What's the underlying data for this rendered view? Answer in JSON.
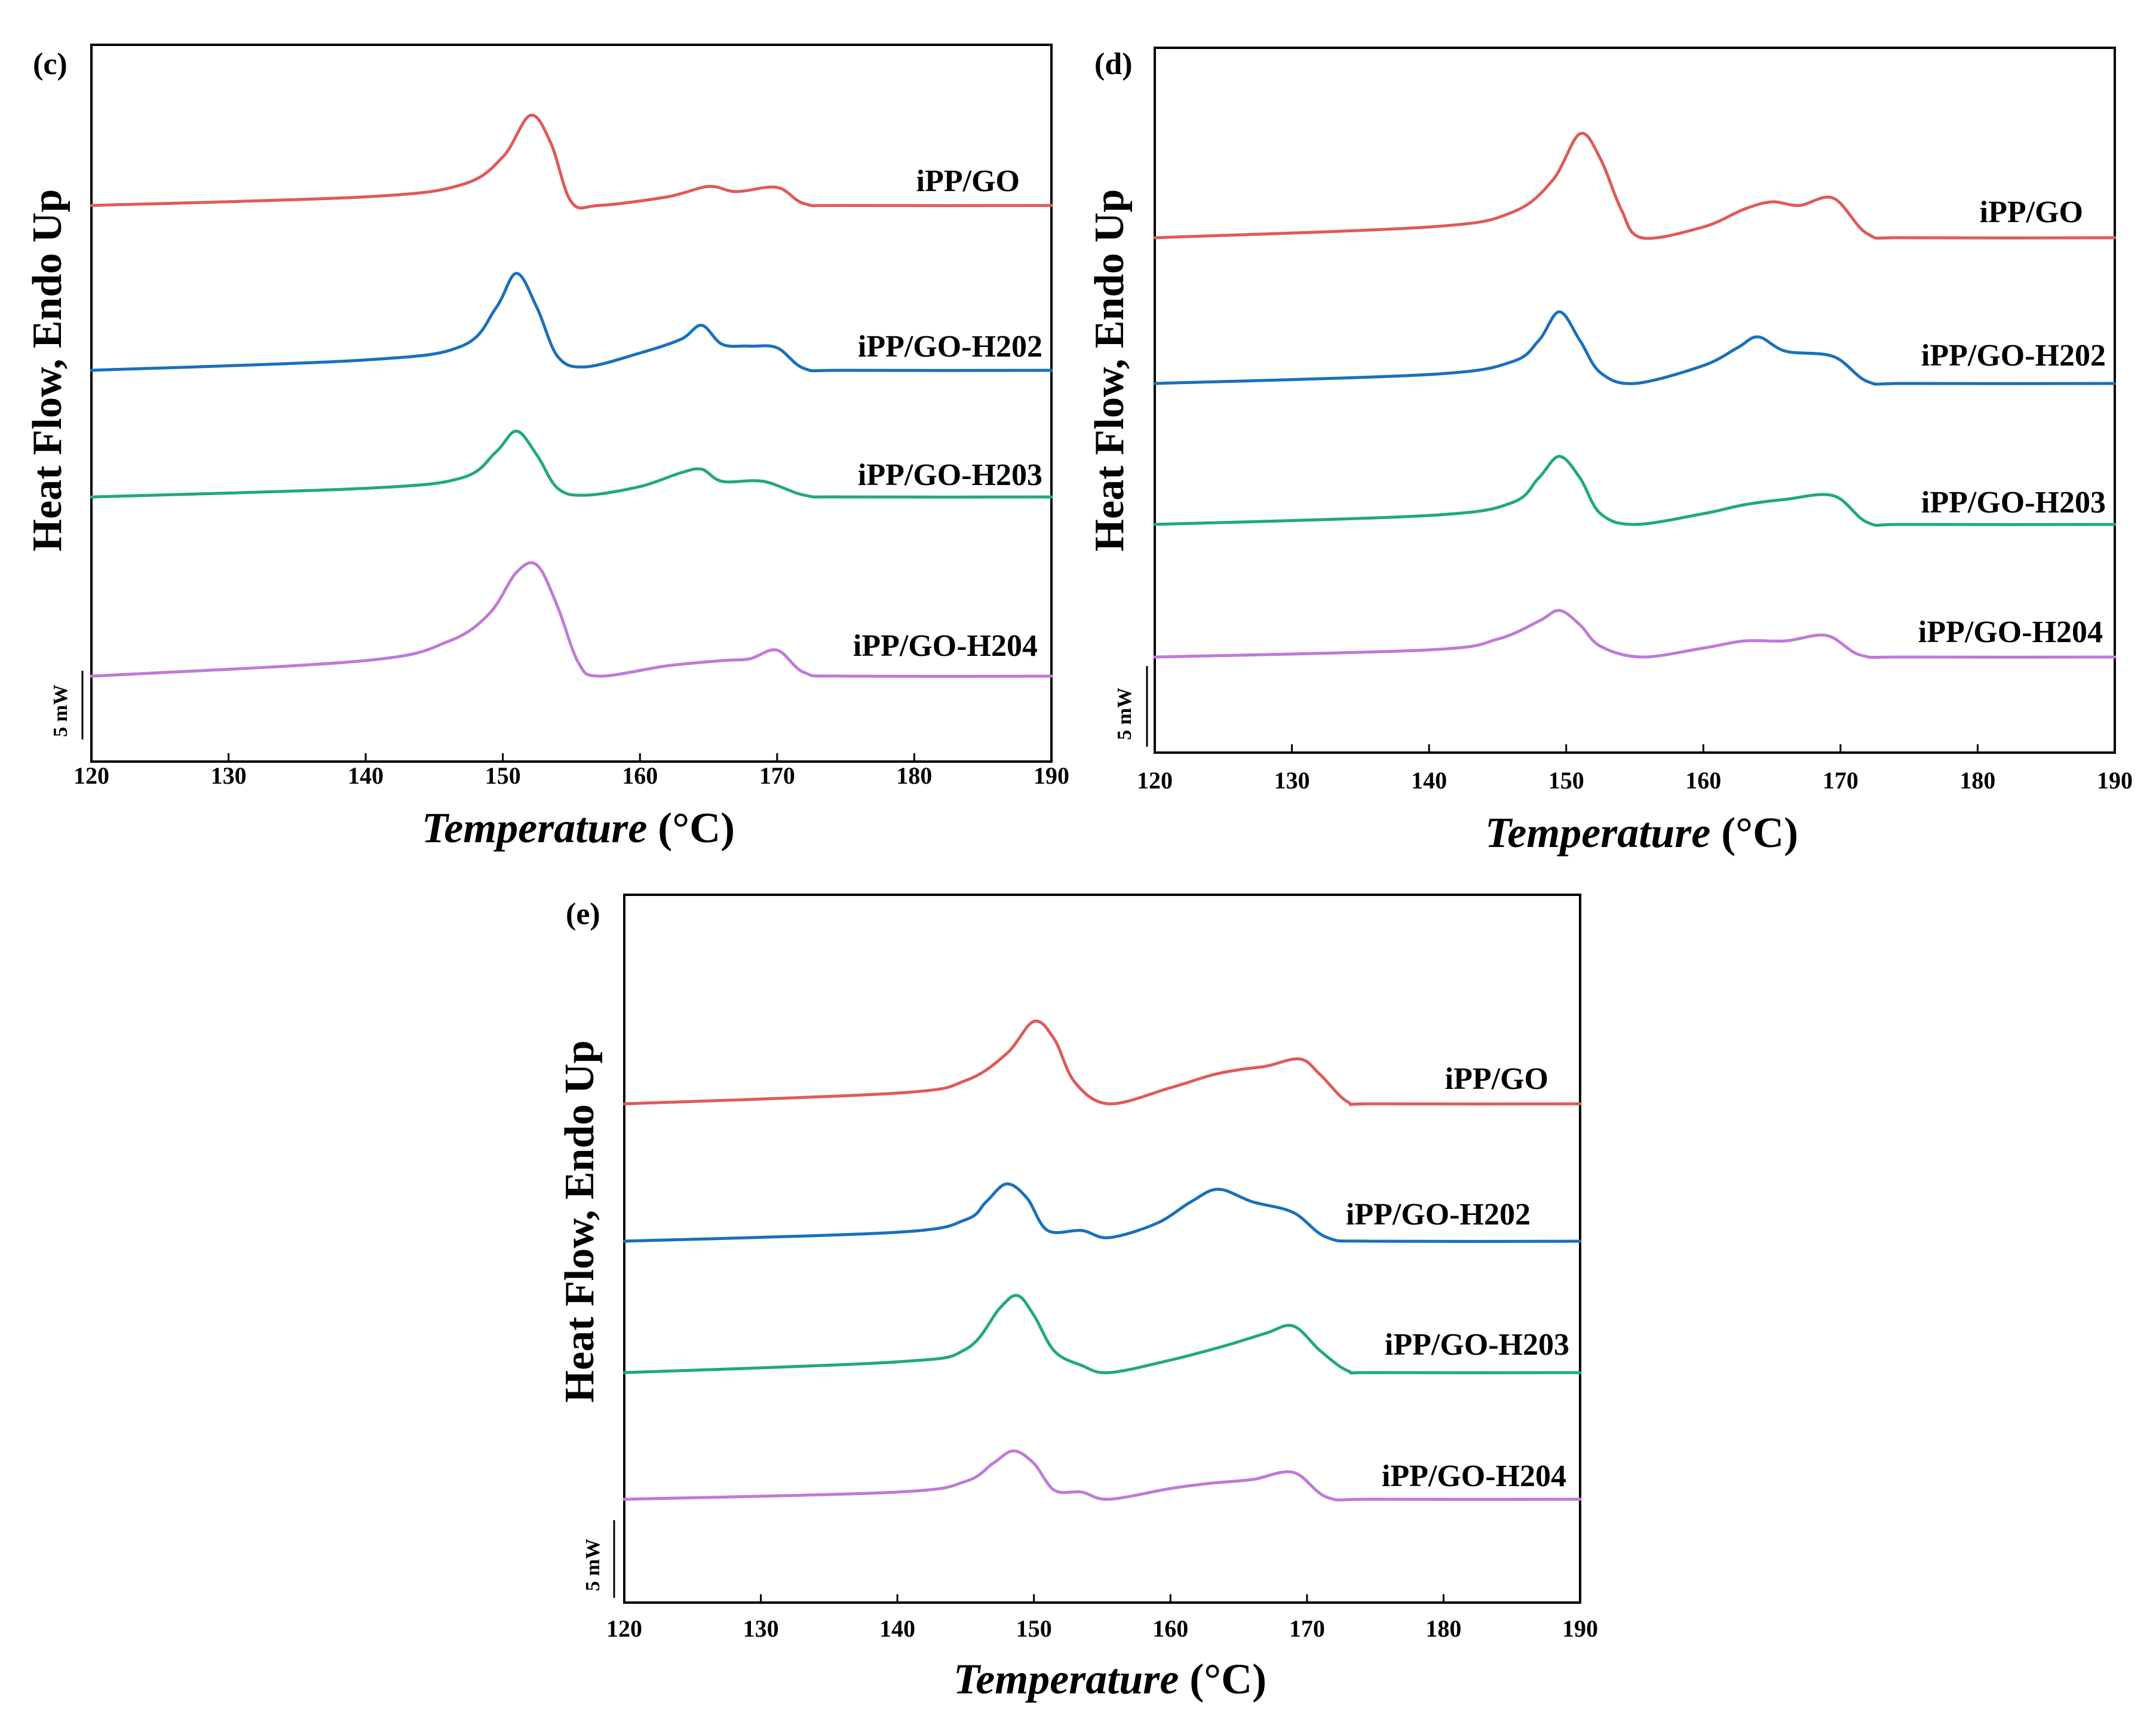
{
  "chart_data": [
    {
      "type": "line",
      "panel_label": "(c)",
      "title": "",
      "xlabel_italic": "Temperature",
      "xlabel_unit": " (°C)",
      "ylabel": "Heat Flow, Endo Up",
      "xlim": [
        120,
        190
      ],
      "xticks": [
        120,
        130,
        140,
        150,
        160,
        170,
        180,
        190
      ],
      "scale_bar": "5 mW",
      "series": [
        {
          "name": "iPP/GO",
          "color": "#e05a5a",
          "baseline": 0.0,
          "points": [
            [
              120,
              0
            ],
            [
              140,
              0.25
            ],
            [
              147,
              0.6
            ],
            [
              150,
              1.4
            ],
            [
              152,
              2.6
            ],
            [
              153.5,
              1.8
            ],
            [
              155,
              0.1
            ],
            [
              157,
              0
            ],
            [
              162,
              0.25
            ],
            [
              165,
              0.55
            ],
            [
              167,
              0.4
            ],
            [
              170,
              0.52
            ],
            [
              172,
              0.05
            ],
            [
              175,
              0
            ],
            [
              190,
              0
            ]
          ]
        },
        {
          "name": "iPP/GO-H202",
          "color": "#1a70bb",
          "baseline": 0.0,
          "points": [
            [
              120,
              0
            ],
            [
              140,
              0.3
            ],
            [
              147,
              0.7
            ],
            [
              149.5,
              1.8
            ],
            [
              151,
              2.8
            ],
            [
              152.5,
              1.8
            ],
            [
              154,
              0.4
            ],
            [
              156,
              0.1
            ],
            [
              160,
              0.5
            ],
            [
              163,
              0.9
            ],
            [
              164.5,
              1.3
            ],
            [
              166,
              0.75
            ],
            [
              168,
              0.7
            ],
            [
              170,
              0.65
            ],
            [
              172,
              0.05
            ],
            [
              175,
              0
            ],
            [
              190,
              0
            ]
          ]
        },
        {
          "name": "iPP/GO-H203",
          "color": "#22a97a",
          "baseline": 0.0,
          "points": [
            [
              120,
              0
            ],
            [
              140,
              0.25
            ],
            [
              147,
              0.55
            ],
            [
              149.5,
              1.3
            ],
            [
              151,
              1.9
            ],
            [
              152.5,
              1.2
            ],
            [
              154,
              0.25
            ],
            [
              156,
              0.05
            ],
            [
              160,
              0.3
            ],
            [
              163,
              0.7
            ],
            [
              164.5,
              0.8
            ],
            [
              166,
              0.45
            ],
            [
              169,
              0.45
            ],
            [
              172,
              0.05
            ],
            [
              175,
              0
            ],
            [
              190,
              0
            ]
          ]
        },
        {
          "name": "iPP/GO-H204",
          "color": "#c07ad8",
          "baseline": 0.0,
          "points": [
            [
              120,
              0
            ],
            [
              140,
              0.45
            ],
            [
              146,
              1.0
            ],
            [
              149,
              1.8
            ],
            [
              151,
              3.0
            ],
            [
              152.5,
              3.2
            ],
            [
              154,
              2.0
            ],
            [
              155.5,
              0.4
            ],
            [
              157,
              0
            ],
            [
              162,
              0.3
            ],
            [
              166,
              0.45
            ],
            [
              168,
              0.5
            ],
            [
              170,
              0.75
            ],
            [
              172,
              0.1
            ],
            [
              175,
              0
            ],
            [
              190,
              0
            ]
          ]
        }
      ]
    },
    {
      "type": "line",
      "panel_label": "(d)",
      "title": "",
      "xlabel_italic": "Temperature",
      "xlabel_unit": " (°C)",
      "ylabel": "Heat Flow, Endo Up",
      "xlim": [
        120,
        190
      ],
      "xticks": [
        120,
        130,
        140,
        150,
        160,
        170,
        180,
        190
      ],
      "scale_bar": "5 mW",
      "series": [
        {
          "name": "iPP/GO",
          "color": "#e05a5a",
          "baseline": 0.0,
          "points": [
            [
              120,
              0
            ],
            [
              140,
              0.3
            ],
            [
              146,
              0.7
            ],
            [
              149,
              1.6
            ],
            [
              151,
              2.9
            ],
            [
              152.5,
              2.2
            ],
            [
              154,
              0.8
            ],
            [
              155.5,
              0
            ],
            [
              160,
              0.3
            ],
            [
              163,
              0.8
            ],
            [
              165,
              1.0
            ],
            [
              167,
              0.9
            ],
            [
              169.5,
              1.1
            ],
            [
              172,
              0.1
            ],
            [
              175,
              0
            ],
            [
              190,
              0
            ]
          ]
        },
        {
          "name": "iPP/GO-H202",
          "color": "#1a70bb",
          "baseline": 0.0,
          "points": [
            [
              120,
              0
            ],
            [
              140,
              0.25
            ],
            [
              146,
              0.6
            ],
            [
              148,
              1.2
            ],
            [
              149.5,
              2.0
            ],
            [
              151,
              1.2
            ],
            [
              152.5,
              0.3
            ],
            [
              155,
              0
            ],
            [
              160,
              0.5
            ],
            [
              162.5,
              1.0
            ],
            [
              164,
              1.3
            ],
            [
              166,
              0.9
            ],
            [
              169.5,
              0.75
            ],
            [
              172,
              0.05
            ],
            [
              175,
              0
            ],
            [
              190,
              0
            ]
          ]
        },
        {
          "name": "iPP/GO-H203",
          "color": "#22a97a",
          "baseline": 0.0,
          "points": [
            [
              120,
              0
            ],
            [
              140,
              0.25
            ],
            [
              146,
              0.6
            ],
            [
              148,
              1.3
            ],
            [
              149.5,
              1.9
            ],
            [
              151,
              1.3
            ],
            [
              152.5,
              0.3
            ],
            [
              155,
              0
            ],
            [
              160,
              0.3
            ],
            [
              163,
              0.55
            ],
            [
              166,
              0.7
            ],
            [
              169.5,
              0.8
            ],
            [
              172,
              0.05
            ],
            [
              175,
              0
            ],
            [
              190,
              0
            ]
          ]
        },
        {
          "name": "iPP/GO-H204",
          "color": "#c07ad8",
          "baseline": 0.0,
          "points": [
            [
              120,
              0
            ],
            [
              140,
              0.2
            ],
            [
              145,
              0.5
            ],
            [
              148,
              1.0
            ],
            [
              149.5,
              1.3
            ],
            [
              151,
              0.9
            ],
            [
              152.5,
              0.3
            ],
            [
              155.5,
              0
            ],
            [
              160,
              0.25
            ],
            [
              163,
              0.45
            ],
            [
              166,
              0.45
            ],
            [
              169,
              0.6
            ],
            [
              171.5,
              0.05
            ],
            [
              175,
              0
            ],
            [
              190,
              0
            ]
          ]
        }
      ]
    },
    {
      "type": "line",
      "panel_label": "(e)",
      "title": "",
      "xlabel_italic": "Temperature",
      "xlabel_unit": " (°C)",
      "ylabel": "Heat Flow, Endo Up",
      "xlim": [
        120,
        190
      ],
      "xticks": [
        120,
        130,
        140,
        150,
        160,
        170,
        180,
        190
      ],
      "scale_bar": "5 mW",
      "series": [
        {
          "name": "iPP/GO",
          "color": "#e05a5a",
          "baseline": 0.0,
          "points": [
            [
              120,
              0
            ],
            [
              140,
              0.3
            ],
            [
              145,
              0.65
            ],
            [
              148,
              1.4
            ],
            [
              150,
              2.3
            ],
            [
              151.5,
              1.8
            ],
            [
              153,
              0.6
            ],
            [
              155.5,
              0
            ],
            [
              160,
              0.45
            ],
            [
              163,
              0.8
            ],
            [
              165,
              0.95
            ],
            [
              167,
              1.05
            ],
            [
              169.5,
              1.25
            ],
            [
              171,
              0.8
            ],
            [
              173,
              0.05
            ],
            [
              175,
              0
            ],
            [
              190,
              0
            ]
          ]
        },
        {
          "name": "iPP/GO-H202",
          "color": "#1a70bb",
          "baseline": 0.0,
          "points": [
            [
              120,
              0
            ],
            [
              140,
              0.25
            ],
            [
              145,
              0.6
            ],
            [
              146.5,
              1.1
            ],
            [
              148,
              1.6
            ],
            [
              149.5,
              1.2
            ],
            [
              151,
              0.3
            ],
            [
              153.5,
              0.3
            ],
            [
              155.5,
              0.1
            ],
            [
              159,
              0.5
            ],
            [
              161.5,
              1.1
            ],
            [
              163.5,
              1.45
            ],
            [
              166,
              1.1
            ],
            [
              169,
              0.8
            ],
            [
              171.5,
              0.1
            ],
            [
              175,
              0
            ],
            [
              190,
              0
            ]
          ]
        },
        {
          "name": "iPP/GO-H203",
          "color": "#22a97a",
          "baseline": 0.0,
          "points": [
            [
              120,
              0
            ],
            [
              140,
              0.3
            ],
            [
              145,
              0.65
            ],
            [
              147.5,
              1.8
            ],
            [
              148.8,
              2.15
            ],
            [
              150,
              1.6
            ],
            [
              151.5,
              0.6
            ],
            [
              153.5,
              0.2
            ],
            [
              155.5,
              0
            ],
            [
              160,
              0.35
            ],
            [
              164,
              0.75
            ],
            [
              167,
              1.1
            ],
            [
              169,
              1.3
            ],
            [
              171,
              0.6
            ],
            [
              173,
              0.05
            ],
            [
              175,
              0
            ],
            [
              190,
              0
            ]
          ]
        },
        {
          "name": "iPP/GO-H204",
          "color": "#c07ad8",
          "baseline": 0.0,
          "points": [
            [
              120,
              0
            ],
            [
              140,
              0.2
            ],
            [
              145,
              0.5
            ],
            [
              147,
              1.0
            ],
            [
              148.5,
              1.35
            ],
            [
              150,
              1.0
            ],
            [
              151.5,
              0.25
            ],
            [
              153.5,
              0.2
            ],
            [
              155.5,
              0
            ],
            [
              160,
              0.3
            ],
            [
              163,
              0.45
            ],
            [
              166,
              0.55
            ],
            [
              169,
              0.75
            ],
            [
              171.5,
              0.05
            ],
            [
              175,
              0
            ],
            [
              190,
              0
            ]
          ]
        }
      ]
    }
  ]
}
